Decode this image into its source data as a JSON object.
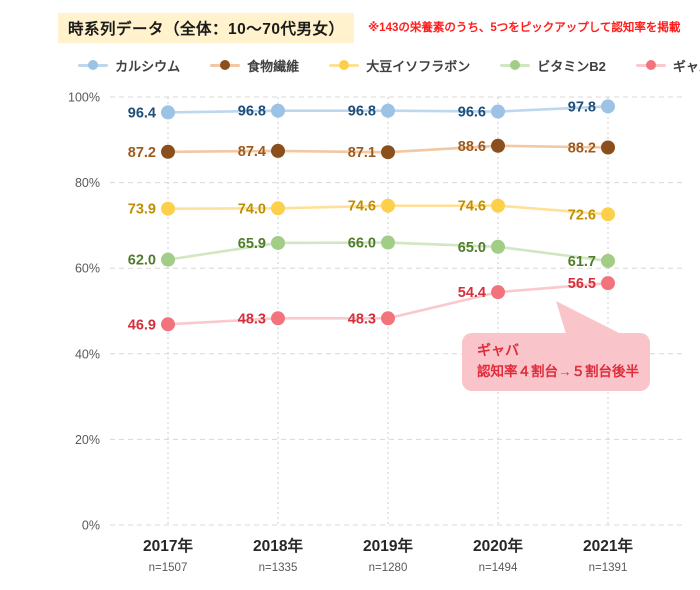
{
  "header": {
    "title": "時系列データ（全体：10～70代男女）",
    "title_bg": "#fff2cc",
    "note": "※143の栄養素のうち、5つをピックアップして認知率を掲載",
    "note_color": "#ff1e1e"
  },
  "chart_data": {
    "type": "line",
    "title": "",
    "categories": [
      "2017年",
      "2018年",
      "2019年",
      "2020年",
      "2021年"
    ],
    "sample_sizes": [
      "n=1507",
      "n=1335",
      "n=1280",
      "n=1494",
      "n=1391"
    ],
    "ylim": [
      0,
      100
    ],
    "y_ticks": [
      "100%",
      "80%",
      "60%",
      "40%",
      "20%",
      "0%"
    ],
    "y_tick_values": [
      100,
      80,
      60,
      40,
      20,
      0
    ],
    "grid": true,
    "legend_position": "top",
    "value_label_decimals": 1,
    "series": [
      {
        "id": "calcium",
        "name": "カルシウム",
        "values": [
          96.4,
          96.8,
          96.8,
          96.6,
          97.8
        ],
        "marker_color": "#9cc2e5",
        "line_color": "#bdd7ee",
        "label_color": "#1f4e79"
      },
      {
        "id": "fiber",
        "name": "食物繊維",
        "values": [
          87.2,
          87.4,
          87.1,
          88.6,
          88.2
        ],
        "marker_color": "#8a4f1d",
        "line_color": "#f2c7a3",
        "label_color": "#9d5a1d"
      },
      {
        "id": "isoflavone",
        "name": "大豆イソフラボン",
        "values": [
          73.9,
          74.0,
          74.6,
          74.6,
          72.6
        ],
        "marker_color": "#fdd04b",
        "line_color": "#ffe09b",
        "label_color": "#bf8f00"
      },
      {
        "id": "vitaminb2",
        "name": "ビタミンB2",
        "values": [
          62.0,
          65.9,
          66.0,
          65.0,
          61.7
        ],
        "marker_color": "#a2cd87",
        "line_color": "#d0e7c2",
        "label_color": "#507d2a"
      },
      {
        "id": "gaba",
        "name": "ギャバ",
        "values": [
          46.9,
          48.3,
          48.3,
          54.4,
          56.5
        ],
        "marker_color": "#f3737d",
        "line_color": "#f9cacd",
        "label_color": "#d52f3a"
      }
    ]
  },
  "callout": {
    "line1": "ギャバ",
    "line2": "認知率４割台→５割台後半",
    "bg": "#f9c5cb",
    "text_color": "#e02d3c"
  }
}
